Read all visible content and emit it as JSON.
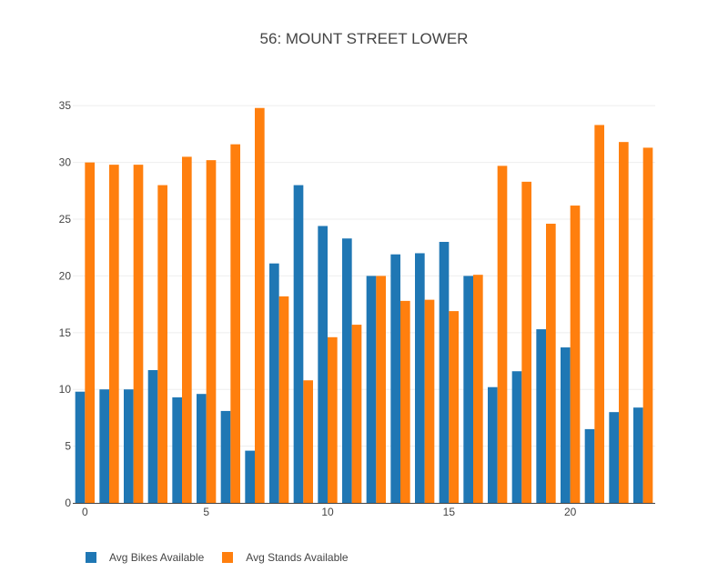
{
  "chart_data": {
    "type": "bar",
    "title": "56: MOUNT STREET LOWER",
    "xlabel": "",
    "ylabel": "",
    "x": [
      0,
      1,
      2,
      3,
      4,
      5,
      6,
      7,
      8,
      9,
      10,
      11,
      12,
      13,
      14,
      15,
      16,
      17,
      18,
      19,
      20,
      21,
      22,
      23
    ],
    "xticks": [
      0,
      5,
      10,
      15,
      20
    ],
    "yticks": [
      0,
      5,
      10,
      15,
      20,
      25,
      30,
      35
    ],
    "ylim": [
      0,
      35.5
    ],
    "xlim": [
      -0.5,
      23.5
    ],
    "grid": "horizontal",
    "legend_position": "bottom-left",
    "series": [
      {
        "name": "Avg Bikes Available",
        "color": "#1f77b4",
        "values": [
          9.8,
          10.0,
          10.0,
          11.7,
          9.3,
          9.6,
          8.1,
          4.6,
          21.1,
          28.0,
          24.4,
          23.3,
          20.0,
          21.9,
          22.0,
          23.0,
          20.0,
          10.2,
          11.6,
          15.3,
          13.7,
          6.5,
          8.0,
          8.4
        ]
      },
      {
        "name": "Avg Stands Available",
        "color": "#ff7f0e",
        "values": [
          30.0,
          29.8,
          29.8,
          28.0,
          30.5,
          30.2,
          31.6,
          34.8,
          18.2,
          10.8,
          14.6,
          15.7,
          20.0,
          17.8,
          17.9,
          16.9,
          20.1,
          29.7,
          28.3,
          24.6,
          26.2,
          33.3,
          31.8,
          31.3
        ]
      }
    ]
  }
}
